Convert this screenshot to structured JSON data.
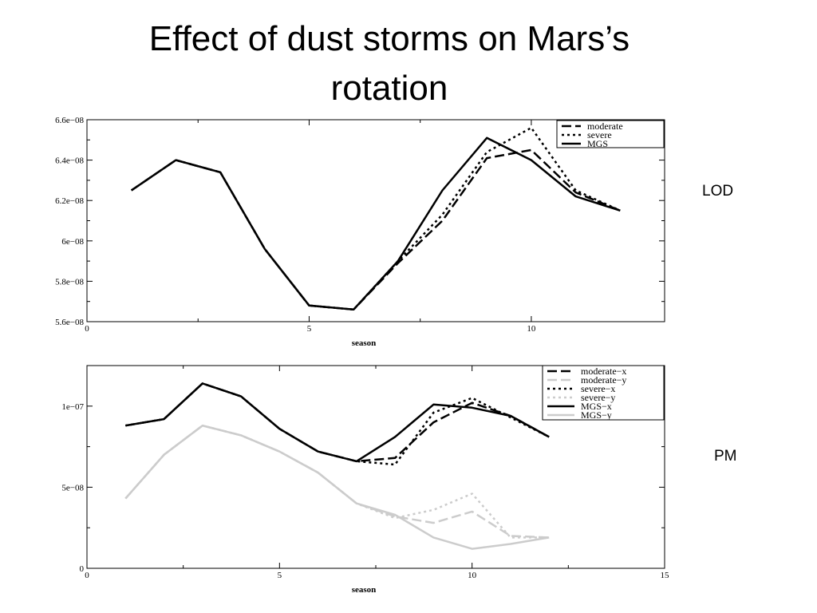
{
  "slide": {
    "title_line1": "Effect of dust storms on Mars’s",
    "title_line2": "rotation",
    "lod_label": "LOD",
    "pm_label": "PM"
  },
  "chart_data": [
    {
      "id": "lod",
      "type": "line",
      "xlabel": "season",
      "ylabel": "",
      "xlim": [
        0,
        13
      ],
      "ylim": [
        5.6e-08,
        6.6e-08
      ],
      "xticks": [
        0,
        5,
        10
      ],
      "xtick_labels": [
        "0",
        "5",
        "10"
      ],
      "yticks": [
        5.6e-08,
        5.8e-08,
        6e-08,
        6.2e-08,
        6.4e-08,
        6.6e-08
      ],
      "ytick_labels": [
        "5.6e−08",
        "5.8e−08",
        "6e−08",
        "6.2e−08",
        "6.4e−08",
        "6.6e−08"
      ],
      "legend_position": "top-right",
      "series": [
        {
          "name": "moderate",
          "color": "#000000",
          "dash": "12 5",
          "width": 2.5,
          "x": [
            1,
            2,
            3,
            4,
            5,
            6,
            7,
            8,
            9,
            10,
            11,
            12
          ],
          "y": [
            6.25e-08,
            6.4e-08,
            6.34e-08,
            5.96e-08,
            5.68e-08,
            5.66e-08,
            5.89e-08,
            6.1e-08,
            6.41e-08,
            6.45e-08,
            6.24e-08,
            6.15e-08
          ]
        },
        {
          "name": "severe",
          "color": "#000000",
          "dash": "3 4",
          "width": 2.5,
          "x": [
            1,
            2,
            3,
            4,
            5,
            6,
            7,
            8,
            9,
            10,
            11,
            12
          ],
          "y": [
            6.25e-08,
            6.4e-08,
            6.34e-08,
            5.96e-08,
            5.68e-08,
            5.66e-08,
            5.9e-08,
            6.13e-08,
            6.44e-08,
            6.56e-08,
            6.25e-08,
            6.15e-08
          ]
        },
        {
          "name": "MGS",
          "color": "#000000",
          "dash": "",
          "width": 2.5,
          "x": [
            1,
            2,
            3,
            4,
            5,
            6,
            7,
            8,
            9,
            10,
            11,
            12
          ],
          "y": [
            6.25e-08,
            6.4e-08,
            6.34e-08,
            5.96e-08,
            5.68e-08,
            5.66e-08,
            5.9e-08,
            6.25e-08,
            6.51e-08,
            6.4e-08,
            6.22e-08,
            6.15e-08
          ]
        }
      ]
    },
    {
      "id": "pm",
      "type": "line",
      "xlabel": "season",
      "ylabel": "",
      "xlim": [
        0,
        15
      ],
      "ylim": [
        0,
        1.25e-07
      ],
      "xticks": [
        0,
        5,
        10,
        15
      ],
      "xtick_labels": [
        "0",
        "5",
        "10",
        "15"
      ],
      "yticks": [
        0,
        5e-08,
        1e-07
      ],
      "ytick_labels": [
        "0",
        "5e−08",
        "1e−07"
      ],
      "legend_position": "top-right",
      "series": [
        {
          "name": "moderate−x",
          "color": "#000000",
          "dash": "12 5",
          "width": 2.5,
          "x": [
            1,
            2,
            3,
            4,
            5,
            6,
            7,
            8,
            9,
            10,
            11,
            12
          ],
          "y": [
            8.8e-08,
            9.2e-08,
            1.14e-07,
            1.06e-07,
            8.6e-08,
            7.2e-08,
            6.6e-08,
            6.8e-08,
            9e-08,
            1.02e-07,
            9.4e-08,
            8.1e-08
          ]
        },
        {
          "name": "moderate−y",
          "color": "#cccccc",
          "dash": "12 5",
          "width": 2.5,
          "x": [
            1,
            2,
            3,
            4,
            5,
            6,
            7,
            8,
            9,
            10,
            11,
            12
          ],
          "y": [
            4.3e-08,
            7e-08,
            8.8e-08,
            8.2e-08,
            7.2e-08,
            5.9e-08,
            4e-08,
            3.2e-08,
            2.8e-08,
            3.5e-08,
            2e-08,
            1.9e-08
          ]
        },
        {
          "name": "severe−x",
          "color": "#000000",
          "dash": "3 4",
          "width": 2.5,
          "x": [
            1,
            2,
            3,
            4,
            5,
            6,
            7,
            8,
            9,
            10,
            11,
            12
          ],
          "y": [
            8.8e-08,
            9.2e-08,
            1.14e-07,
            1.06e-07,
            8.6e-08,
            7.2e-08,
            6.6e-08,
            6.4e-08,
            9.6e-08,
            1.05e-07,
            9.3e-08,
            8.1e-08
          ]
        },
        {
          "name": "severe−y",
          "color": "#cccccc",
          "dash": "3 4",
          "width": 2.5,
          "x": [
            1,
            2,
            3,
            4,
            5,
            6,
            7,
            8,
            9,
            10,
            11,
            12
          ],
          "y": [
            4.3e-08,
            7e-08,
            8.8e-08,
            8.2e-08,
            7.2e-08,
            5.9e-08,
            4e-08,
            3.1e-08,
            3.6e-08,
            4.6e-08,
            1.9e-08,
            1.9e-08
          ]
        },
        {
          "name": "MGS−x",
          "color": "#000000",
          "dash": "",
          "width": 2.5,
          "x": [
            1,
            2,
            3,
            4,
            5,
            6,
            7,
            8,
            9,
            10,
            11,
            12
          ],
          "y": [
            8.8e-08,
            9.2e-08,
            1.14e-07,
            1.06e-07,
            8.6e-08,
            7.2e-08,
            6.6e-08,
            8.1e-08,
            1.01e-07,
            9.9e-08,
            9.4e-08,
            8.1e-08
          ]
        },
        {
          "name": "MGS−y",
          "color": "#cccccc",
          "dash": "",
          "width": 2.5,
          "x": [
            1,
            2,
            3,
            4,
            5,
            6,
            7,
            8,
            9,
            10,
            11,
            12
          ],
          "y": [
            4.3e-08,
            7e-08,
            8.8e-08,
            8.2e-08,
            7.2e-08,
            5.9e-08,
            4e-08,
            3.3e-08,
            1.9e-08,
            1.2e-08,
            1.5e-08,
            1.9e-08
          ]
        }
      ]
    }
  ]
}
